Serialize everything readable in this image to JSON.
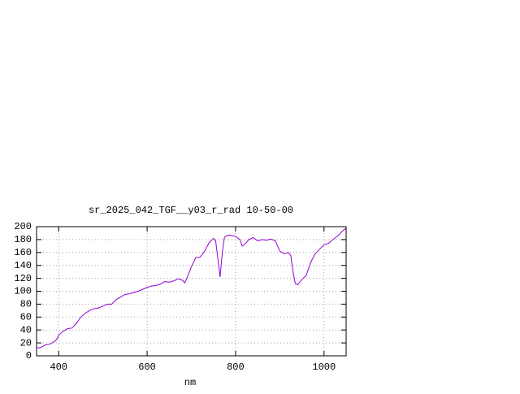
{
  "chart_data": {
    "type": "line",
    "title": "sr_2025_042_TGF__y03_r_rad 10-50-00",
    "x_label": "nm",
    "series": [
      {
        "color": "#9400d3",
        "x": [
          350,
          360,
          370,
          380,
          390,
          395,
          400,
          410,
          420,
          430,
          440,
          450,
          460,
          470,
          480,
          490,
          500,
          510,
          520,
          530,
          540,
          550,
          560,
          570,
          580,
          590,
          600,
          610,
          620,
          630,
          640,
          650,
          660,
          670,
          680,
          685,
          690,
          700,
          710,
          720,
          730,
          740,
          750,
          755,
          760,
          765,
          770,
          775,
          785,
          800,
          810,
          815,
          820,
          830,
          840,
          850,
          860,
          870,
          880,
          890,
          900,
          910,
          920,
          925,
          930,
          935,
          940,
          950,
          960,
          970,
          980,
          990,
          1000,
          1010,
          1020,
          1030,
          1040,
          1050
        ],
        "values": [
          12,
          13,
          17,
          18,
          22,
          25,
          32,
          38,
          42,
          43,
          50,
          60,
          66,
          70,
          73,
          74,
          77,
          80,
          80,
          87,
          91,
          95,
          96,
          98,
          100,
          103,
          106,
          108,
          109,
          111,
          115,
          114,
          116,
          119,
          117,
          113,
          120,
          138,
          152,
          153,
          162,
          175,
          182,
          178,
          150,
          122,
          160,
          184,
          187,
          185,
          180,
          170,
          172,
          180,
          183,
          178,
          180,
          179,
          181,
          178,
          162,
          158,
          160,
          155,
          130,
          112,
          110,
          118,
          125,
          145,
          158,
          165,
          172,
          174,
          180,
          185,
          192,
          198
        ]
      }
    ],
    "xlim": [
      350,
      1050
    ],
    "xticks": [
      400,
      600,
      800,
      1000
    ],
    "ylim": [
      0,
      200
    ],
    "yticks": [
      0,
      20,
      40,
      60,
      80,
      100,
      120,
      140,
      160,
      180,
      200
    ],
    "grid": true
  }
}
